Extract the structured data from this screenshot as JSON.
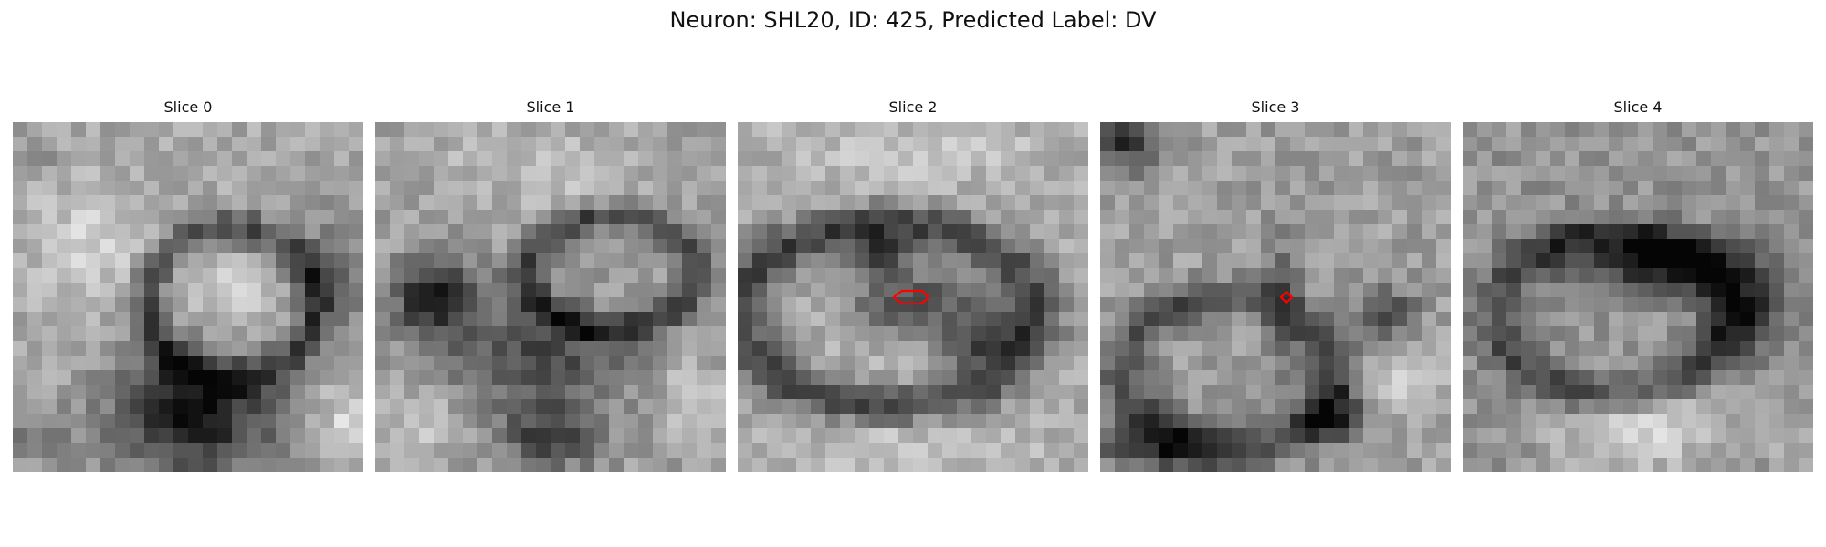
{
  "figure": {
    "title": "Neuron: SHL20, ID: 425, Predicted Label: DV"
  },
  "panels": [
    {
      "title": "Slice 0",
      "marker": "none"
    },
    {
      "title": "Slice 1",
      "marker": "none"
    },
    {
      "title": "Slice 2",
      "marker": "hexagon"
    },
    {
      "title": "Slice 3",
      "marker": "diamond"
    },
    {
      "title": "Slice 4",
      "marker": "none"
    }
  ],
  "colors": {
    "background": "#ffffff",
    "text": "#111111",
    "marker": "#ff0000",
    "colormap": "grayscale"
  }
}
